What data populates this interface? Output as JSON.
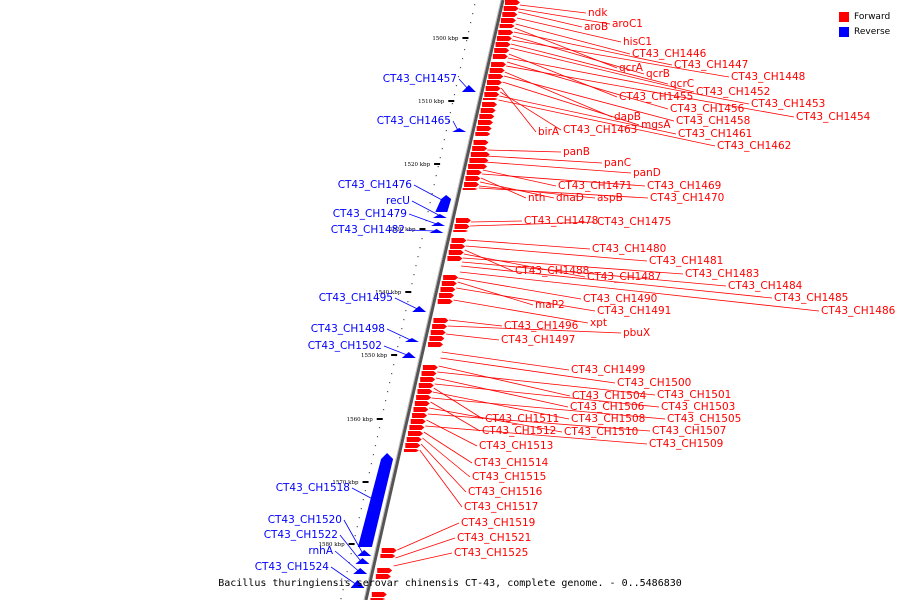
{
  "caption": "Bacillus thuringiensis serovar chinensis CT-43, complete genome. - 0..5486830",
  "legend": [
    {
      "label": "Forward",
      "color": "#ff0000"
    },
    {
      "label": "Reverse",
      "color": "#0000ff"
    }
  ],
  "colors": {
    "forward": "#ff0000",
    "reverse": "#0000ff",
    "backbone": "#777777"
  },
  "ticks": [
    "1500 kbp",
    "1510 kbp",
    "1520 kbp",
    "1530 kbp",
    "1540 kbp",
    "1550 kbp",
    "1560 kbp",
    "1570 kbp",
    "1580 kbp"
  ],
  "forward_genes": [
    "ndk",
    "aroC1",
    "aroB",
    "hisC1",
    "CT43_CH1446",
    "qcrA",
    "CT43_CH1447",
    "qcrB",
    "CT43_CH1448",
    "qcrC",
    "CT43_CH1452",
    "CT43_CH1455",
    "CT43_CH1453",
    "CT43_CH1456",
    "CT43_CH1454",
    "dapB",
    "CT43_CH1458",
    "mgsA",
    "birA",
    "CT43_CH1463",
    "CT43_CH1461",
    "CT43_CH1462",
    "panB",
    "panC",
    "panD",
    "CT43_CH1471",
    "CT43_CH1469",
    "nth",
    "dnaD",
    "aspB",
    "CT43_CH1470",
    "CT43_CH1478",
    "CT43_CH1475",
    "CT43_CH1480",
    "CT43_CH1481",
    "CT43_CH1488",
    "CT43_CH1487",
    "CT43_CH1483",
    "CT43_CH1484",
    "CT43_CH1485",
    "CT43_CH1486",
    "CT43_CH1490",
    "maP2",
    "CT43_CH1491",
    "xpt",
    "CT43_CH1496",
    "pbuX",
    "CT43_CH1497",
    "CT43_CH1499",
    "CT43_CH1500",
    "CT43_CH1504",
    "CT43_CH1501",
    "CT43_CH1506",
    "CT43_CH1503",
    "CT43_CH1511",
    "CT43_CH1508",
    "CT43_CH1505",
    "CT43_CH1512",
    "CT43_CH1510",
    "CT43_CH1507",
    "CT43_CH1513",
    "CT43_CH1509",
    "CT43_CH1514",
    "CT43_CH1515",
    "CT43_CH1516",
    "CT43_CH1517",
    "CT43_CH1519",
    "CT43_CH1521",
    "CT43_CH1525"
  ],
  "reverse_genes": [
    "CT43_CH1457",
    "CT43_CH1465",
    "CT43_CH1476",
    "recU",
    "CT43_CH1479",
    "CT43_CH1482",
    "CT43_CH1495",
    "CT43_CH1498",
    "CT43_CH1502",
    "CT43_CH1518",
    "CT43_CH1520",
    "CT43_CH1522",
    "rnhA",
    "CT43_CH1524"
  ]
}
